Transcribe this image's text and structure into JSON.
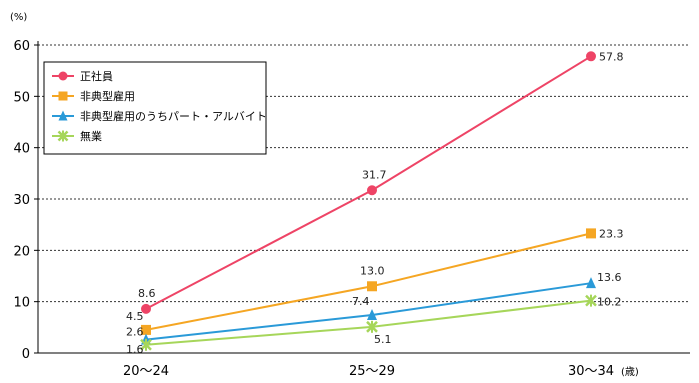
{
  "chart_data": {
    "type": "line",
    "title": "",
    "xlabel": "",
    "ylabel": "",
    "y_unit": "(%)",
    "x_unit": "(歳)",
    "categories": [
      "20～24",
      "25～29",
      "30～34"
    ],
    "ylim": [
      0,
      60
    ],
    "yticks": [
      0,
      10,
      20,
      30,
      40,
      50,
      60
    ],
    "grid": "horizontal-dashed",
    "legend_position": "top-left",
    "series": [
      {
        "name": "正社員",
        "values": [
          8.6,
          31.7,
          57.8
        ],
        "labels": [
          "8.6",
          "31.7",
          "57.8"
        ],
        "color": "#ee4466",
        "marker": "circle"
      },
      {
        "name": "非典型雇用",
        "values": [
          4.5,
          13.0,
          23.3
        ],
        "labels": [
          "4.5",
          "13.0",
          "23.3"
        ],
        "color": "#f5a623",
        "marker": "square"
      },
      {
        "name": "非典型雇用のうちパート・アルバイト",
        "values": [
          2.6,
          7.4,
          13.6
        ],
        "labels": [
          "2.6",
          "7.4",
          "13.6"
        ],
        "color": "#2a9ad8",
        "marker": "triangle"
      },
      {
        "name": "無業",
        "values": [
          1.6,
          5.1,
          10.2
        ],
        "labels": [
          "1.6",
          "5.1",
          "10.2"
        ],
        "color": "#a6d65a",
        "marker": "x"
      }
    ]
  }
}
